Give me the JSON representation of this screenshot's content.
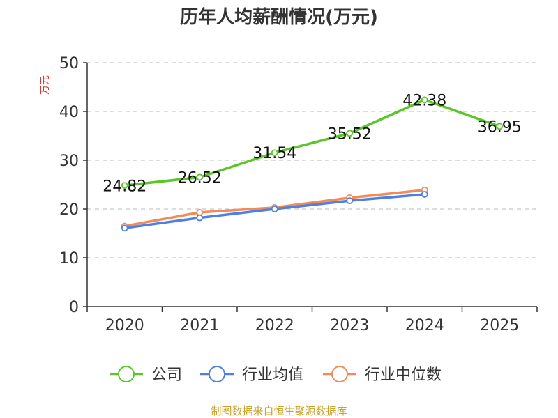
{
  "chart_data": {
    "type": "line",
    "title": "历年人均薪酬情况(万元)",
    "ylabel": "万元",
    "xlabel": "",
    "categories": [
      "2020",
      "2021",
      "2022",
      "2023",
      "2024",
      "2025"
    ],
    "ylim": [
      0,
      50
    ],
    "yticks": [
      0,
      10,
      20,
      30,
      40,
      50
    ],
    "grid": true,
    "legend_position": "bottom",
    "series": [
      {
        "name": "公司",
        "color": "#5cc52a",
        "values": [
          24.82,
          26.52,
          31.54,
          35.52,
          42.38,
          36.95
        ],
        "show_labels": true
      },
      {
        "name": "行业均值",
        "color": "#4f7fe0",
        "values": [
          16.1,
          18.2,
          20.0,
          21.7,
          23.0,
          null
        ],
        "show_labels": false
      },
      {
        "name": "行业中位数",
        "color": "#f08b5a",
        "values": [
          16.5,
          19.3,
          20.3,
          22.3,
          23.9,
          null
        ],
        "show_labels": false
      }
    ]
  },
  "source_note": "制图数据来自恒生聚源数据库"
}
